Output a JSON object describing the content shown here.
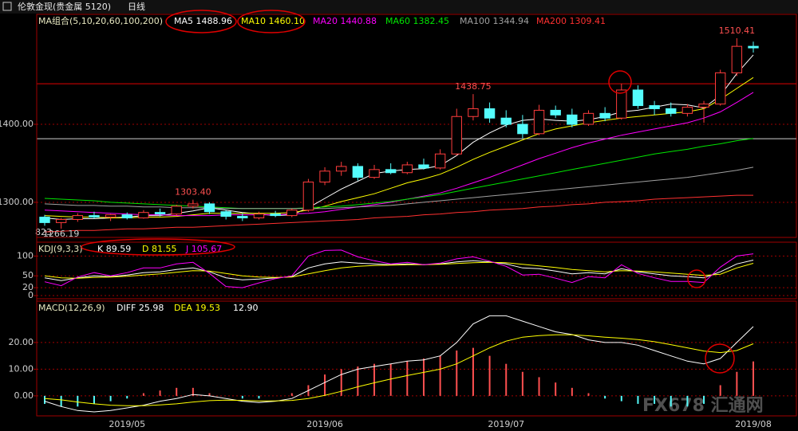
{
  "header": {
    "instrument": "伦敦金现(贵金属 5120)",
    "period": "日线",
    "corner_note": "823",
    "watermark": "FX678 汇通网"
  },
  "chart_data": [
    {
      "type": "candlestick",
      "title": "MA组合(5,10,20,60,100,200)",
      "categories": [
        null,
        null,
        null,
        null,
        null,
        "2019/05",
        null,
        null,
        null,
        null,
        null,
        null,
        null,
        null,
        null,
        null,
        null,
        "2019/06",
        null,
        null,
        null,
        null,
        null,
        null,
        null,
        null,
        null,
        null,
        "2019/07",
        null,
        null,
        null,
        null,
        null,
        null,
        null,
        null,
        null,
        null,
        null,
        null,
        null,
        null,
        "2019/08"
      ],
      "open": [
        1281,
        1274,
        1278,
        1283,
        1281,
        1284,
        1280,
        1287,
        1285,
        1295,
        1298,
        1288,
        1282,
        1280,
        1285,
        1283,
        1290,
        1326,
        1340,
        1346,
        1332,
        1342,
        1338,
        1348,
        1344,
        1362,
        1410,
        1420,
        1408,
        1400,
        1388,
        1418,
        1412,
        1400,
        1414,
        1408,
        1444,
        1424,
        1420,
        1414,
        1422,
        1426,
        1466,
        1500
      ],
      "high": [
        1284,
        1280,
        1286,
        1288,
        1285,
        1287,
        1290,
        1292,
        1297,
        1303.4,
        1300,
        1290,
        1286,
        1288,
        1289,
        1292,
        1330,
        1345,
        1352,
        1350,
        1348,
        1350,
        1352,
        1356,
        1368,
        1420,
        1438.75,
        1428,
        1418,
        1412,
        1425,
        1424,
        1420,
        1418,
        1422,
        1452,
        1450,
        1430,
        1428,
        1426,
        1430,
        1470,
        1510.41,
        1506
      ],
      "low": [
        1270,
        1266.19,
        1275,
        1279,
        1276,
        1278,
        1279,
        1282,
        1283,
        1292,
        1285,
        1278,
        1276,
        1278,
        1281,
        1281,
        1288,
        1322,
        1334,
        1328,
        1330,
        1336,
        1336,
        1342,
        1342,
        1360,
        1405,
        1402,
        1396,
        1382,
        1386,
        1408,
        1396,
        1398,
        1404,
        1406,
        1420,
        1412,
        1410,
        1410,
        1402,
        1424,
        1462,
        1492
      ],
      "close": [
        1274,
        1278,
        1283,
        1281,
        1284,
        1280,
        1287,
        1285,
        1295,
        1298,
        1288,
        1282,
        1280,
        1285,
        1283,
        1290,
        1326,
        1340,
        1346,
        1332,
        1342,
        1338,
        1348,
        1344,
        1362,
        1410,
        1420,
        1408,
        1400,
        1388,
        1418,
        1412,
        1400,
        1414,
        1408,
        1444,
        1424,
        1420,
        1414,
        1422,
        1426,
        1466,
        1500,
        1498
      ],
      "up_color": "#ff3c3c",
      "down_color": "#54fcfc",
      "series": [
        {
          "name": "MA5",
          "legend_value": 1488.96,
          "color": "#ffffff",
          "values": [
            1280,
            1278,
            1279,
            1279,
            1280,
            1281,
            1283,
            1283,
            1286,
            1289,
            1293,
            1290,
            1287,
            1285,
            1283,
            1284,
            1293,
            1305,
            1317,
            1327,
            1337,
            1340,
            1342,
            1343,
            1347,
            1360,
            1377,
            1389,
            1399,
            1405,
            1407,
            1405,
            1404,
            1406,
            1410,
            1416,
            1418,
            1422,
            1426,
            1425,
            1421,
            1437,
            1465,
            1489
          ]
        },
        {
          "name": "MA10",
          "legend_value": 1460.1,
          "legend_label": "1460.10",
          "color": "#ffff00",
          "values": [
            1283,
            1282,
            1281,
            1281,
            1280,
            1280,
            1281,
            1281,
            1282,
            1284,
            1286,
            1286,
            1286,
            1286,
            1286,
            1287,
            1290,
            1295,
            1301,
            1306,
            1311,
            1318,
            1325,
            1330,
            1336,
            1345,
            1355,
            1364,
            1372,
            1380,
            1388,
            1394,
            1398,
            1402,
            1405,
            1408,
            1410,
            1412,
            1414,
            1416,
            1420,
            1432,
            1446,
            1460
          ]
        },
        {
          "name": "MA20",
          "legend_value": 1440.88,
          "color": "#ff00ff",
          "values": [
            1290,
            1289,
            1288,
            1287,
            1286,
            1285,
            1284,
            1284,
            1283,
            1283,
            1283,
            1284,
            1284,
            1284,
            1284,
            1285,
            1286,
            1288,
            1291,
            1294,
            1297,
            1300,
            1304,
            1308,
            1312,
            1318,
            1325,
            1332,
            1340,
            1348,
            1356,
            1363,
            1370,
            1376,
            1381,
            1386,
            1390,
            1394,
            1398,
            1402,
            1408,
            1416,
            1428,
            1441
          ]
        },
        {
          "name": "MA60",
          "legend_value": 1382.45,
          "color": "#00e600",
          "values": [
            1305,
            1304,
            1303,
            1302,
            1300,
            1299,
            1298,
            1297,
            1296,
            1295,
            1294,
            1293,
            1292,
            1292,
            1292,
            1292,
            1293,
            1294,
            1295,
            1297,
            1299,
            1301,
            1304,
            1307,
            1310,
            1314,
            1318,
            1322,
            1326,
            1330,
            1334,
            1338,
            1342,
            1346,
            1350,
            1354,
            1358,
            1362,
            1365,
            1368,
            1372,
            1375,
            1379,
            1382
          ]
        },
        {
          "name": "MA100",
          "legend_value": 1344.94,
          "color": "#a0a0a0",
          "values": [
            1298,
            1297,
            1296,
            1296,
            1295,
            1295,
            1294,
            1294,
            1293,
            1293,
            1293,
            1292,
            1292,
            1292,
            1292,
            1292,
            1292,
            1292,
            1293,
            1294,
            1295,
            1296,
            1298,
            1300,
            1302,
            1304,
            1306,
            1308,
            1310,
            1312,
            1314,
            1316,
            1318,
            1320,
            1322,
            1324,
            1326,
            1328,
            1330,
            1332,
            1335,
            1338,
            1341,
            1345
          ]
        },
        {
          "name": "MA200",
          "legend_value": 1309.41,
          "color": "#ff3030",
          "values": [
            1262,
            1263,
            1264,
            1264,
            1265,
            1266,
            1266,
            1267,
            1268,
            1268,
            1269,
            1270,
            1271,
            1272,
            1273,
            1274,
            1275,
            1276,
            1277,
            1278,
            1280,
            1281,
            1282,
            1284,
            1285,
            1287,
            1288,
            1290,
            1291,
            1292,
            1294,
            1295,
            1297,
            1298,
            1300,
            1301,
            1302,
            1304,
            1305,
            1306,
            1307,
            1308,
            1309,
            1309
          ]
        }
      ],
      "annotations": [
        1510.41,
        1438.75,
        {
          "value": 1303.4,
          "label": "1303.40"
        },
        1266.19
      ],
      "hlines": [
        {
          "value": 1452,
          "color": "#e00000"
        },
        {
          "value": 1381.5,
          "color": "#d0d0d0"
        }
      ],
      "ylim": [
        1255,
        1541
      ],
      "yticks": [
        {
          "value": 1300,
          "label": "1300.00"
        },
        {
          "value": 1400,
          "label": "1400.00"
        }
      ],
      "grid": true
    },
    {
      "type": "line",
      "title": "KDJ(9,3,3)",
      "series": [
        {
          "name": "K",
          "legend_value": 89.59,
          "color": "#ffffff",
          "values": [
            45,
            38,
            45,
            50,
            48,
            52,
            58,
            60,
            66,
            70,
            60,
            45,
            40,
            42,
            45,
            48,
            70,
            80,
            85,
            82,
            80,
            78,
            80,
            78,
            80,
            85,
            88,
            85,
            80,
            70,
            68,
            62,
            55,
            58,
            55,
            68,
            60,
            55,
            50,
            48,
            45,
            60,
            80,
            89.59
          ]
        },
        {
          "name": "D",
          "legend_value": 81.55,
          "color": "#ffff00",
          "values": [
            50,
            45,
            44,
            46,
            47,
            49,
            52,
            55,
            59,
            63,
            62,
            56,
            50,
            47,
            46,
            47,
            55,
            63,
            70,
            74,
            76,
            77,
            78,
            78,
            79,
            81,
            83,
            84,
            83,
            79,
            75,
            71,
            66,
            63,
            60,
            63,
            62,
            60,
            57,
            54,
            51,
            54,
            70,
            81.55
          ]
        },
        {
          "name": "J",
          "legend_value": 105.67,
          "color": "#ff00ff",
          "values": [
            35,
            25,
            47,
            58,
            50,
            58,
            70,
            70,
            80,
            84,
            56,
            23,
            20,
            32,
            43,
            50,
            100,
            114,
            115,
            98,
            88,
            80,
            84,
            78,
            82,
            93,
            98,
            87,
            74,
            52,
            54,
            44,
            33,
            48,
            45,
            78,
            56,
            45,
            36,
            36,
            33,
            72,
            100,
            105.67
          ]
        }
      ],
      "ylim": [
        -8,
        135
      ],
      "yticks": [
        0,
        20,
        50,
        100
      ],
      "grid": true
    },
    {
      "type": "macd",
      "title": "MACD(12,26,9)",
      "series": [
        {
          "name": "DIFF",
          "legend_value": 25.98,
          "color": "#ffffff",
          "values": [
            -2,
            -4,
            -5.5,
            -6,
            -5.5,
            -4.5,
            -3.5,
            -2,
            -1,
            0.5,
            0,
            -1,
            -2,
            -2.5,
            -2,
            -1,
            2,
            5,
            8,
            10,
            11,
            12,
            13,
            13.5,
            15,
            20,
            27,
            30,
            30,
            28,
            26,
            24,
            23,
            21,
            20,
            20,
            19,
            17,
            15,
            13,
            12,
            14,
            20,
            25.98
          ]
        },
        {
          "name": "DEA",
          "legend_value": 19.53,
          "color": "#ffff00",
          "values": [
            -1,
            -1.5,
            -2.3,
            -3,
            -3.5,
            -3.7,
            -3.7,
            -3.4,
            -3,
            -2.3,
            -1.8,
            -1.6,
            -1.7,
            -1.9,
            -1.9,
            -1.7,
            -1,
            0.2,
            1.7,
            3.4,
            4.9,
            6.3,
            7.6,
            8.8,
            10,
            12,
            15,
            18,
            20.5,
            22,
            22.6,
            22.9,
            22.9,
            22.5,
            22,
            21.6,
            21.1,
            20.3,
            19.2,
            18,
            16.8,
            16.2,
            17,
            19.53
          ]
        }
      ],
      "histogram": {
        "legend_value": 12.9,
        "legend_label": "12.90",
        "pos_color": "#ff5050",
        "neg_color": "#54fcfc",
        "values": [
          -3,
          -4,
          -4,
          -3,
          -2,
          -1,
          1,
          2,
          3,
          3,
          1,
          0,
          -1,
          -1,
          0,
          1,
          4,
          8,
          10,
          11,
          12,
          12,
          13,
          14,
          15,
          17,
          18,
          15,
          12,
          9,
          7,
          5,
          3,
          1,
          -1,
          -2,
          -3,
          -3,
          -4,
          -4,
          -3,
          4,
          9,
          12.9
        ]
      },
      "ylim": [
        -7.5,
        35.5
      ],
      "yticks": [
        {
          "value": 0,
          "label": "0.00"
        },
        {
          "value": 10,
          "label": "10.00"
        },
        {
          "value": 20,
          "label": "20.00"
        }
      ],
      "grid": true
    }
  ]
}
